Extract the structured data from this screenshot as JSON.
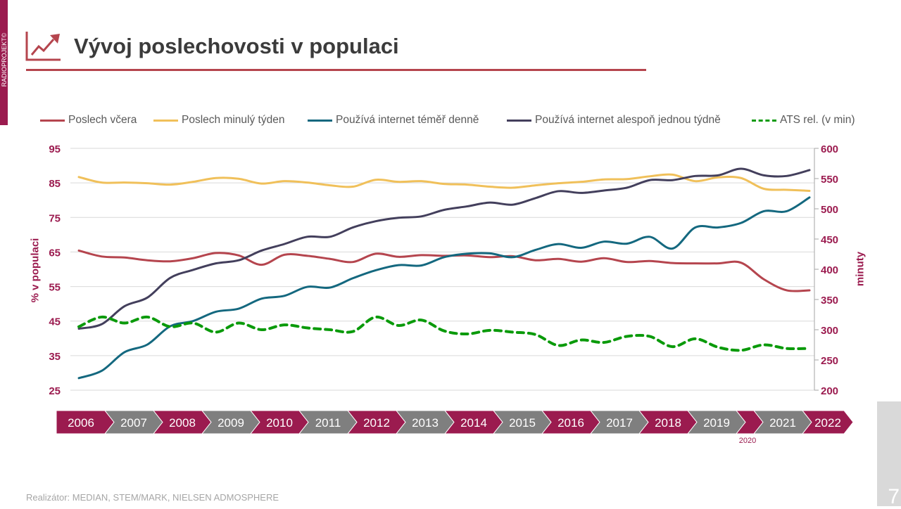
{
  "sidebar_brand": "RADIOPROJEKT©",
  "title": "Vývoj poslechovosti v populaci",
  "footer": "Realizátor: MEDIAN, STEM/MARK, NIELSEN ADMOSPHERE",
  "page_number": "7",
  "colors": {
    "brand": "#9b1b4f",
    "timeline_gray": "#7f7f7f",
    "title_rule": "#b5454e"
  },
  "timeline": {
    "years": [
      "2006",
      "2007",
      "2008",
      "2009",
      "2010",
      "2011",
      "2012",
      "2013",
      "2014",
      "2015",
      "2016",
      "2017",
      "2018",
      "2019",
      "2020",
      "2021",
      "2022"
    ],
    "note_2020": "2020"
  },
  "chart_data": {
    "type": "line",
    "title": "",
    "ylabel": "% v populaci",
    "ylabel_right": "minuty",
    "ylim": [
      25,
      95
    ],
    "ylim_right": [
      200,
      600
    ],
    "yticks": [
      "95",
      "85",
      "75",
      "65",
      "55",
      "45",
      "35",
      "25"
    ],
    "yticks_right": [
      "600",
      "550",
      "500",
      "450",
      "400",
      "350",
      "300",
      "250",
      "200"
    ],
    "x_period": "2006–2022 (half-yearly)",
    "grid": true,
    "legend_position": "top",
    "series": [
      {
        "name": "Poslech včera",
        "axis": "left",
        "color": "#b5454e",
        "dashed": false,
        "values": [
          65.4,
          63.7,
          63.4,
          62.6,
          62.3,
          63.2,
          64.7,
          64.0,
          61.3,
          64.2,
          63.9,
          63.0,
          62.1,
          64.5,
          63.6,
          64.1,
          63.9,
          64.0,
          63.5,
          63.8,
          62.6,
          63.0,
          62.2,
          63.2,
          62.1,
          62.4,
          61.8,
          61.7,
          61.7,
          61.9,
          57.1,
          53.9,
          53.9
        ]
      },
      {
        "name": "Poslech minulý týden",
        "axis": "left",
        "color": "#f0c05a",
        "dashed": false,
        "values": [
          86.7,
          85.1,
          85.1,
          84.9,
          84.5,
          85.3,
          86.4,
          86.2,
          84.8,
          85.5,
          85.1,
          84.3,
          83.9,
          85.9,
          85.3,
          85.5,
          84.7,
          84.5,
          83.9,
          83.6,
          84.3,
          84.9,
          85.3,
          86.0,
          86.1,
          86.9,
          87.4,
          85.5,
          86.6,
          86.4,
          83.3,
          83.0,
          82.7
        ]
      },
      {
        "name": "Používá internet téměř denně",
        "axis": "left",
        "color": "#14687f",
        "dashed": false,
        "values": [
          28.5,
          30.6,
          36.0,
          38.2,
          43.5,
          45.0,
          47.7,
          48.6,
          51.5,
          52.3,
          54.9,
          54.7,
          57.4,
          59.7,
          61.2,
          61.1,
          63.5,
          64.5,
          64.6,
          63.5,
          65.6,
          67.3,
          66.2,
          68.0,
          67.4,
          69.4,
          66.0,
          72.1,
          72.1,
          73.4,
          76.8,
          76.8,
          80.8
        ]
      },
      {
        "name": "Používá internet alespoň jednou týdně",
        "axis": "left",
        "color": "#433f5c",
        "dashed": false,
        "values": [
          42.8,
          44.1,
          49.3,
          51.8,
          57.5,
          59.8,
          61.7,
          62.6,
          65.4,
          67.3,
          69.4,
          69.4,
          72.1,
          73.9,
          74.9,
          75.3,
          77.2,
          78.2,
          79.3,
          78.7,
          80.6,
          82.6,
          82.1,
          82.8,
          83.6,
          85.8,
          85.8,
          87.0,
          87.2,
          89.1,
          87.2,
          87.0,
          88.7
        ]
      },
      {
        "name": "ATS rel. (v min)",
        "axis": "right",
        "color": "#0a9a0a",
        "dashed": true,
        "values": [
          305,
          321,
          311,
          321,
          305,
          311,
          296,
          311,
          300,
          308,
          303,
          300,
          297,
          321,
          307,
          316,
          298,
          293,
          299,
          296,
          292,
          274,
          283,
          279,
          289,
          289,
          272,
          285,
          271,
          266,
          275,
          269,
          269
        ]
      }
    ]
  }
}
